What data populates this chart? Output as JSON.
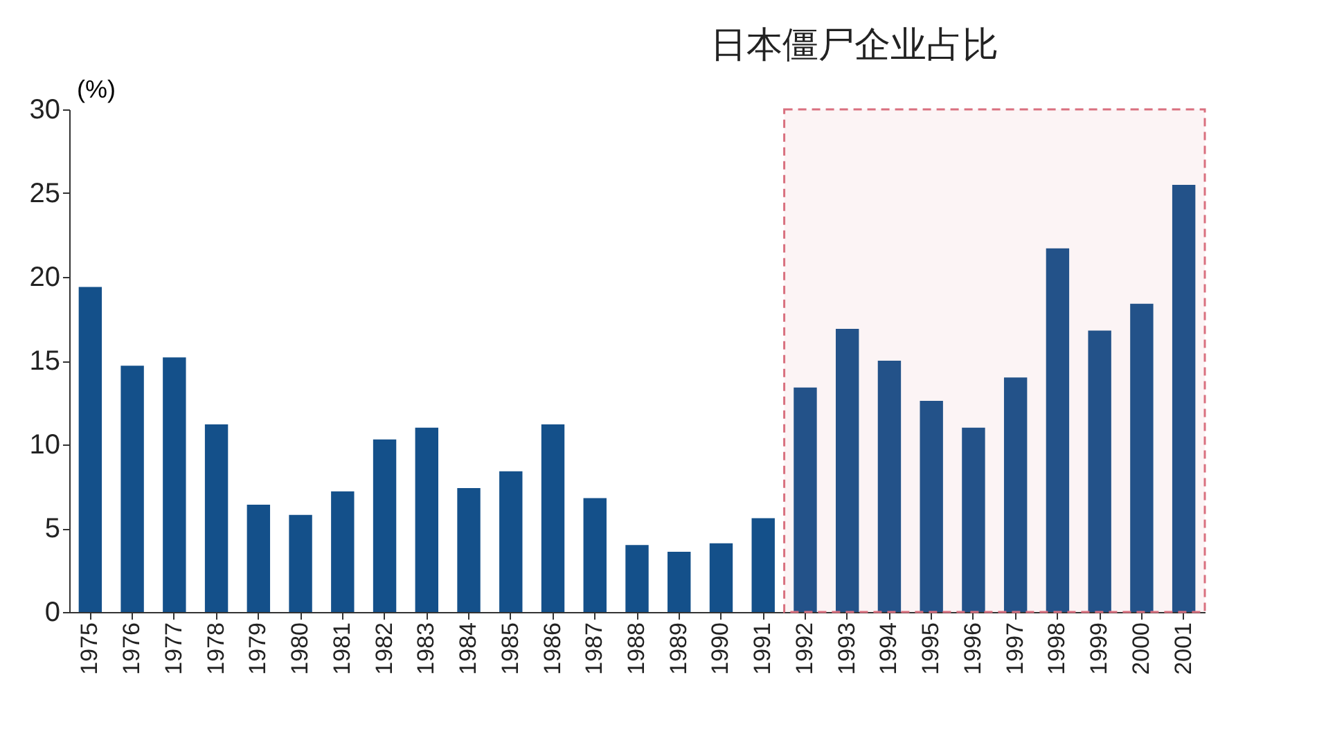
{
  "chart_data": {
    "type": "bar",
    "title": "日本僵尸企业占比",
    "ylabel": "(%)",
    "categories": [
      "1975",
      "1976",
      "1977",
      "1978",
      "1979",
      "1980",
      "1981",
      "1982",
      "1983",
      "1984",
      "1985",
      "1986",
      "1987",
      "1988",
      "1989",
      "1990",
      "1991",
      "1992",
      "1993",
      "1994",
      "1995",
      "1996",
      "1997",
      "1998",
      "1999",
      "2000",
      "2001"
    ],
    "values": [
      19.4,
      14.7,
      15.2,
      11.2,
      6.4,
      5.8,
      7.2,
      10.3,
      11.0,
      7.4,
      8.4,
      11.2,
      6.8,
      4.0,
      3.6,
      4.1,
      5.6,
      13.4,
      16.9,
      15.0,
      12.6,
      11.0,
      14.0,
      21.7,
      16.8,
      18.4,
      25.5
    ],
    "color": "#14508a",
    "ylim": [
      0,
      30
    ],
    "yticks": [
      0,
      5,
      10,
      15,
      20,
      25,
      30
    ],
    "grid": false,
    "bands": [
      {
        "axis": "x",
        "from": "1992",
        "to": "2001",
        "color": "#d9707f"
      }
    ]
  }
}
